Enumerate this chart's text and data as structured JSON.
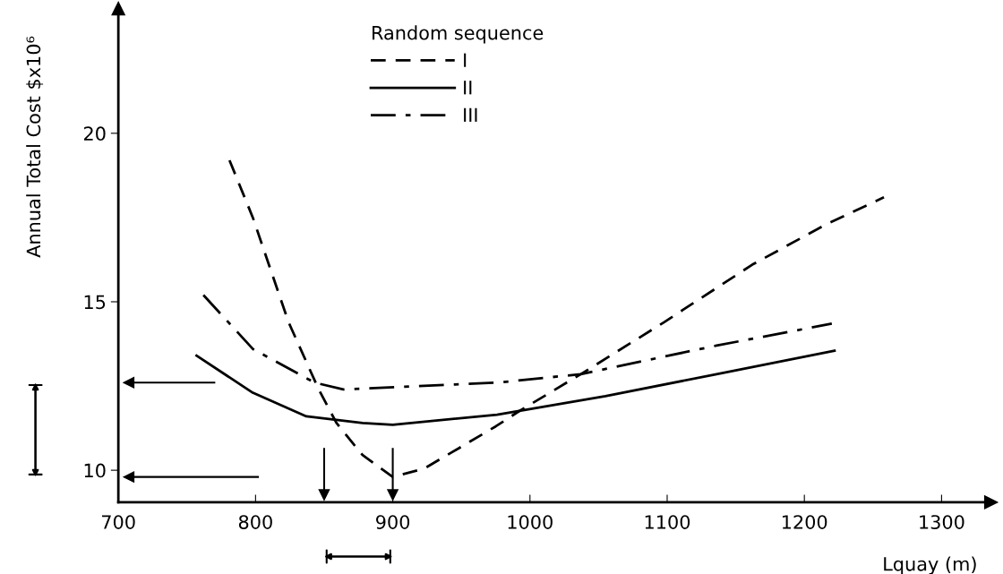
{
  "chart_data": {
    "type": "line",
    "xlabel": "Lquay (m)",
    "ylabel": "Annual Total Cost $x10⁶",
    "legend_title": "Random sequence",
    "series": [
      {
        "name": "I",
        "color": "#000000",
        "line_style": "dashed",
        "x": [
          781,
          798,
          824,
          846,
          859,
          878,
          900,
          923,
          975,
          992,
          1037,
          1098,
          1162,
          1216,
          1258
        ],
        "values": [
          19.2,
          17.5,
          14.4,
          12.4,
          11.4,
          10.45,
          9.8,
          10.05,
          11.3,
          11.75,
          12.85,
          14.4,
          16.1,
          17.3,
          18.1
        ]
      },
      {
        "name": "II",
        "color": "#000000",
        "line_style": "solid",
        "x": [
          757,
          798,
          837,
          878,
          900,
          976,
          1055,
          1136,
          1222
        ],
        "values": [
          13.4,
          12.3,
          11.6,
          11.4,
          11.35,
          11.65,
          12.2,
          12.85,
          13.55
        ]
      },
      {
        "name": "III",
        "color": "#000000",
        "line_style": "dashdot",
        "x": [
          762,
          798,
          843,
          864,
          976,
          1037,
          1136,
          1220
        ],
        "values": [
          15.2,
          13.6,
          12.6,
          12.4,
          12.6,
          12.85,
          13.7,
          14.35
        ]
      }
    ],
    "xlim": [
      700,
      1336
    ],
    "ylim": [
      9.05,
      23.7
    ],
    "xticks": [
      700,
      800,
      900,
      1000,
      1100,
      1200,
      1300
    ],
    "yticks": [
      10,
      15,
      20
    ],
    "ref_lines": [
      {
        "axis": "y",
        "value": 12.6
      },
      {
        "axis": "y",
        "value": 9.8
      },
      {
        "axis": "x",
        "value": 850
      },
      {
        "axis": "x",
        "value": 900
      }
    ],
    "grid": false,
    "legend": "top left"
  }
}
